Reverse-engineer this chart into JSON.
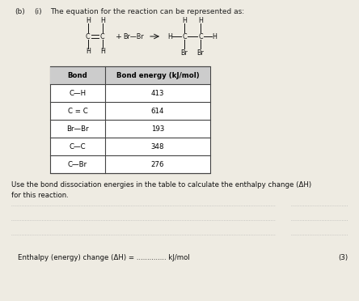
{
  "background_color": "#eeebe2",
  "header_text_parts": [
    "(b)",
    "(i)",
    "The equation for the reaction can be represented as:"
  ],
  "table_headers": [
    "Bond",
    "Bond energy (kJ/mol)"
  ],
  "table_rows": [
    [
      "C—H",
      "413"
    ],
    [
      "C = C",
      "614"
    ],
    [
      "Br—Br",
      "193"
    ],
    [
      "C—C",
      "348"
    ],
    [
      "C—Br",
      "276"
    ]
  ],
  "instruction_text": "Use the bond dissociation energies in the table to calculate the enthalpy change (ΔH)\nfor this reaction.",
  "answer_line_text": "Enthalpy (energy) change (ΔH) = .............. kJ/mol",
  "mark_text": "(3)",
  "font_size_header": 6.5,
  "font_size_mol": 5.8,
  "font_size_table_header": 6.2,
  "font_size_table_row": 6.2,
  "font_size_instruction": 6.2,
  "font_size_answer": 6.2
}
